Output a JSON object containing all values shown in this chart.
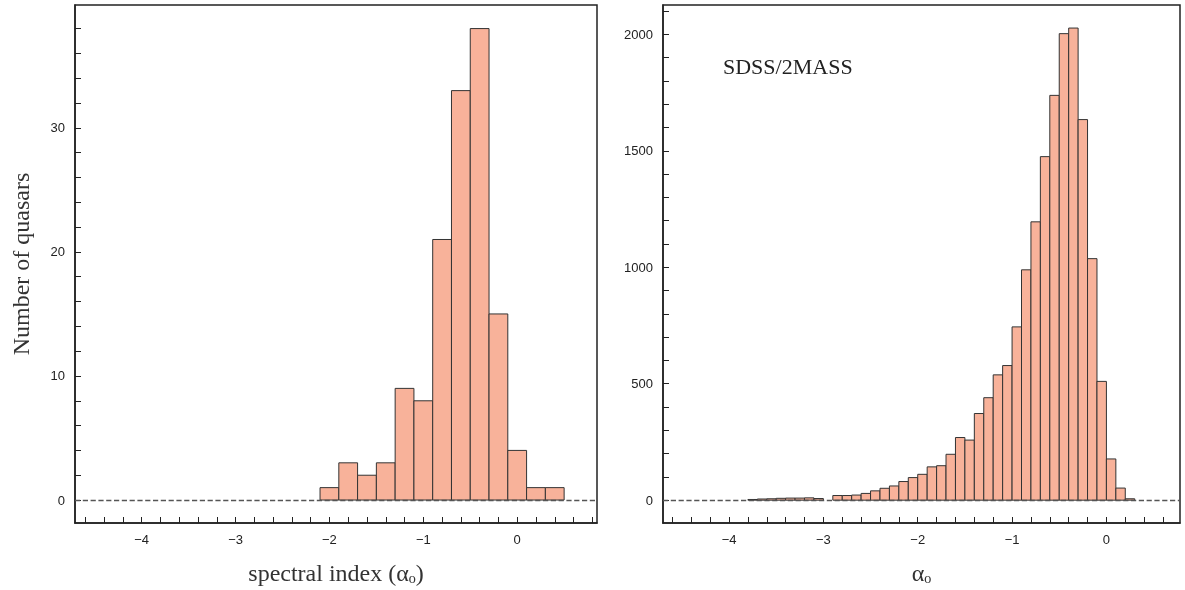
{
  "chart_data": [
    {
      "type": "histogram",
      "xlabel": "spectral index (αₒ)",
      "ylabel": "Number of quasars",
      "color": "#f8b29a",
      "bins": [
        -4.5,
        -4.3,
        -4.1,
        -3.9,
        -3.7,
        -3.5,
        -3.3,
        -3.1,
        -2.9,
        -2.7,
        -2.5,
        -2.3,
        -2.1,
        -1.9,
        -1.7,
        -1.5,
        -1.3,
        -1.1,
        -0.9,
        -0.7,
        -0.5,
        -0.3,
        -0.1,
        0.1,
        0.3,
        0.5
      ],
      "values": [
        0,
        0,
        0,
        0,
        0,
        0,
        0,
        0,
        0,
        0,
        0,
        0,
        1,
        3,
        2,
        3,
        9,
        8,
        21,
        33,
        38,
        15,
        4,
        1,
        1
      ],
      "xlim": [
        -4.71,
        0.85
      ],
      "ylim": [
        -1.85,
        39.9
      ],
      "xticks": [
        {
          "value": -4.6,
          "label": null
        },
        {
          "value": -4.4,
          "label": null
        },
        {
          "value": -4.2,
          "label": null
        },
        {
          "value": -4,
          "label": "−4"
        },
        {
          "value": -3.8,
          "label": null
        },
        {
          "value": -3.6,
          "label": null
        },
        {
          "value": -3.4,
          "label": null
        },
        {
          "value": -3.2,
          "label": null
        },
        {
          "value": -3,
          "label": "−3"
        },
        {
          "value": -2.8,
          "label": null
        },
        {
          "value": -2.6,
          "label": null
        },
        {
          "value": -2.4,
          "label": null
        },
        {
          "value": -2.2,
          "label": null
        },
        {
          "value": -2,
          "label": "−2"
        },
        {
          "value": -1.8,
          "label": null
        },
        {
          "value": -1.6,
          "label": null
        },
        {
          "value": -1.4,
          "label": null
        },
        {
          "value": -1.2,
          "label": null
        },
        {
          "value": -1,
          "label": "−1"
        },
        {
          "value": -0.8,
          "label": null
        },
        {
          "value": -0.6,
          "label": null
        },
        {
          "value": -0.4,
          "label": null
        },
        {
          "value": -0.2,
          "label": null
        },
        0,
        {
          "value": 0.2,
          "label": null
        },
        {
          "value": 0.4,
          "label": null
        },
        {
          "value": 0.6,
          "label": null
        },
        {
          "value": 0.8,
          "label": null
        }
      ],
      "yticks": [
        0,
        {
          "value": 2,
          "label": null
        },
        {
          "value": 4,
          "label": null
        },
        {
          "value": 6,
          "label": null
        },
        {
          "value": 8,
          "label": null
        },
        10,
        {
          "value": 12,
          "label": null
        },
        {
          "value": 14,
          "label": null
        },
        {
          "value": 16,
          "label": null
        },
        {
          "value": 18,
          "label": null
        },
        20,
        {
          "value": 22,
          "label": null
        },
        {
          "value": 24,
          "label": null
        },
        {
          "value": 26,
          "label": null
        },
        {
          "value": 28,
          "label": null
        },
        30,
        {
          "value": 32,
          "label": null
        },
        {
          "value": 34,
          "label": null
        },
        {
          "value": 36,
          "label": null
        },
        {
          "value": 38,
          "label": null
        }
      ],
      "ref_lines": [
        {
          "axis": "y",
          "value": 0,
          "line_style": "dashed"
        }
      ]
    },
    {
      "type": "histogram",
      "xlabel": "αₒ",
      "color": "#f8b29a",
      "annotations": [
        "SDSS/2MASS"
      ],
      "bins": [
        -4.5,
        -4.4,
        -4.3,
        -4.2,
        -4.1,
        -4.0,
        -3.9,
        -3.8,
        -3.7,
        -3.6,
        -3.5,
        -3.4,
        -3.3,
        -3.2,
        -3.1,
        -3.0,
        -2.9,
        -2.8,
        -2.7,
        -2.6,
        -2.5,
        -2.4,
        -2.3,
        -2.2,
        -2.1,
        -2.0,
        -1.9,
        -1.8,
        -1.7,
        -1.6,
        -1.5,
        -1.4,
        -1.3,
        -1.2,
        -1.1,
        -1.0,
        -0.9,
        -0.8,
        -0.7,
        -0.6,
        -0.5,
        -0.4,
        -0.3,
        -0.2,
        -0.1,
        0.0,
        0.1,
        0.2,
        0.3
      ],
      "values": [
        0,
        0,
        null,
        null,
        null,
        null,
        null,
        3,
        5,
        6,
        8,
        9,
        9,
        10,
        7,
        null,
        20,
        20,
        22,
        29,
        40,
        51,
        61,
        80,
        97,
        111,
        143,
        148,
        197,
        269,
        258,
        372,
        440,
        538,
        578,
        744,
        989,
        1195,
        1475,
        1738,
        2003,
        2027,
        1634,
        1037,
        510,
        177,
        52,
        6
      ],
      "xlim": [
        -4.7,
        0.78
      ],
      "ylim": [
        -98,
        2126
      ],
      "xticks": [
        {
          "value": -4.6,
          "label": null
        },
        {
          "value": -4.4,
          "label": null
        },
        {
          "value": -4.2,
          "label": null
        },
        {
          "value": -4,
          "label": "−4"
        },
        {
          "value": -3.8,
          "label": null
        },
        {
          "value": -3.6,
          "label": null
        },
        {
          "value": -3.4,
          "label": null
        },
        {
          "value": -3.2,
          "label": null
        },
        {
          "value": -3,
          "label": "−3"
        },
        {
          "value": -2.8,
          "label": null
        },
        {
          "value": -2.6,
          "label": null
        },
        {
          "value": -2.4,
          "label": null
        },
        {
          "value": -2.2,
          "label": null
        },
        {
          "value": -2,
          "label": "−2"
        },
        {
          "value": -1.8,
          "label": null
        },
        {
          "value": -1.6,
          "label": null
        },
        {
          "value": -1.4,
          "label": null
        },
        {
          "value": -1.2,
          "label": null
        },
        {
          "value": -1,
          "label": "−1"
        },
        {
          "value": -0.8,
          "label": null
        },
        {
          "value": -0.6,
          "label": null
        },
        {
          "value": -0.4,
          "label": null
        },
        {
          "value": -0.2,
          "label": null
        },
        0,
        {
          "value": 0.2,
          "label": null
        },
        {
          "value": 0.4,
          "label": null
        },
        {
          "value": 0.6,
          "label": null
        }
      ],
      "yticks": [
        0,
        {
          "value": 100,
          "label": null
        },
        {
          "value": 200,
          "label": null
        },
        {
          "value": 300,
          "label": null
        },
        {
          "value": 400,
          "label": null
        },
        500,
        {
          "value": 600,
          "label": null
        },
        {
          "value": 700,
          "label": null
        },
        {
          "value": 800,
          "label": null
        },
        {
          "value": 900,
          "label": null
        },
        1000,
        {
          "value": 1100,
          "label": null
        },
        {
          "value": 1200,
          "label": null
        },
        {
          "value": 1300,
          "label": null
        },
        {
          "value": 1400,
          "label": null
        },
        1500,
        {
          "value": 1600,
          "label": null
        },
        {
          "value": 1700,
          "label": null
        },
        {
          "value": 1800,
          "label": null
        },
        {
          "value": 1900,
          "label": null
        },
        2000,
        {
          "value": 2100,
          "label": null
        }
      ],
      "ref_lines": [
        {
          "axis": "y",
          "value": 0,
          "line_style": "dashed"
        }
      ]
    }
  ]
}
